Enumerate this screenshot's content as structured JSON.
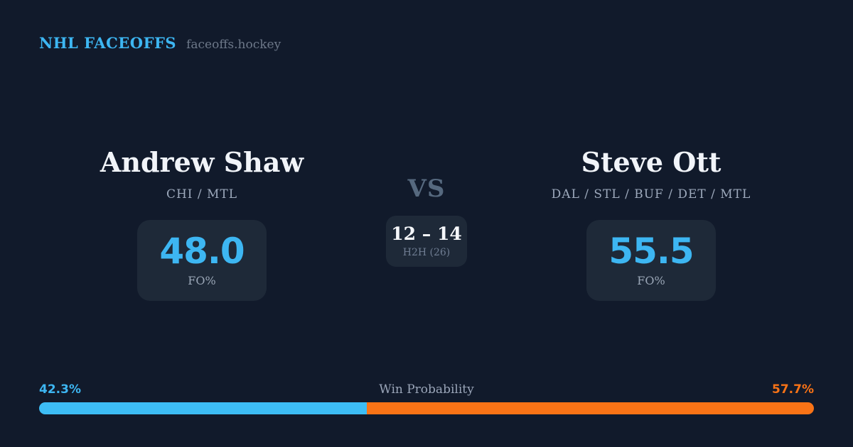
{
  "header": {
    "brand": "NHL FACEOFFS",
    "site": "faceoffs.hockey"
  },
  "players": [
    {
      "name": "Andrew Shaw",
      "teams": "CHI / MTL",
      "fo_pct": "48.0",
      "fo_label": "FO%"
    },
    {
      "name": "Steve Ott",
      "teams": "DAL / STL / BUF / DET / MTL",
      "fo_pct": "55.5",
      "fo_label": "FO%"
    }
  ],
  "matchup": {
    "vs_label": "VS",
    "h2h_record": "12 – 14",
    "h2h_label": "H2H (26)"
  },
  "win_probability": {
    "title": "Win Probability",
    "left_pct": "42.3%",
    "right_pct": "57.7%",
    "left_value": 42.3,
    "right_value": 57.7
  },
  "colors": {
    "background": "#111a2b",
    "panel": "#1e2938",
    "accent_blue": "#3db6f2",
    "bar_blue": "#3dbdf5",
    "bar_orange": "#f97316",
    "name_text": "#f1f4f9",
    "muted_text": "#9da9bc",
    "vs_text": "#56697f"
  }
}
